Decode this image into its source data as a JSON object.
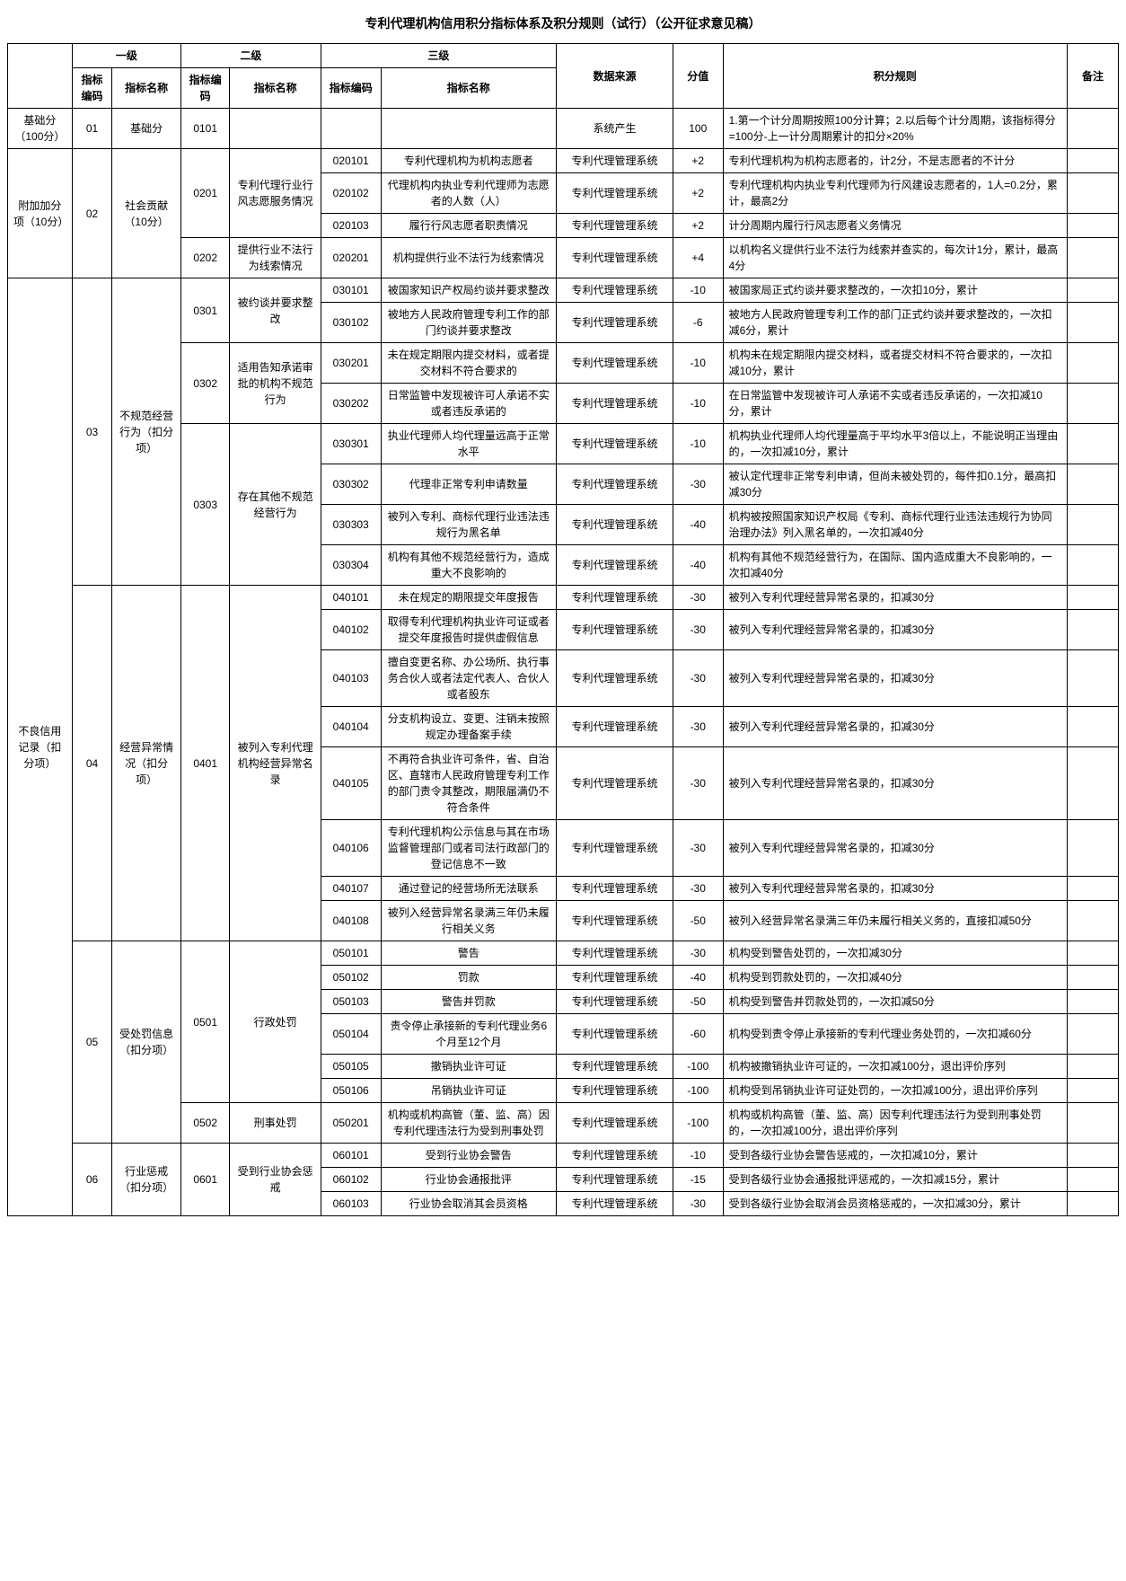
{
  "title": "专利代理机构信用积分指标体系及积分规则（试行）（公开征求意见稿）",
  "header_groups": {
    "l1": "一级",
    "l2": "二级",
    "l3": "三级"
  },
  "headers": {
    "code": "指标编码",
    "name": "指标名称",
    "source": "数据来源",
    "score": "分值",
    "rule": "积分规则",
    "remark": "备注"
  },
  "colA": {
    "base": "基础分（100分）",
    "add": "附加加分项（10分）",
    "bad": "不良信用记录（扣分项）"
  },
  "rows": {
    "r01": {
      "l1c": "01",
      "l1n": "基础分",
      "l2c": "0101",
      "l2n": "",
      "l3c": "",
      "l3n": "",
      "src": "系统产生",
      "score": "100",
      "rule": "1.第一个计分周期按照100分计算；2.以后每个计分周期，该指标得分=100分-上一计分周期累计的扣分×20%"
    },
    "r0201": {
      "l1c": "02",
      "l1n": "社会贡献（10分）",
      "l2c": "0201",
      "l2n": "专利代理行业行风志愿服务情况",
      "l3c": "020101",
      "l3n": "专利代理机构为机构志愿者",
      "src": "专利代理管理系统",
      "score": "+2",
      "rule": "专利代理机构为机构志愿者的，计2分，不是志愿者的不计分"
    },
    "r020102": {
      "l3c": "020102",
      "l3n": "代理机构内执业专利代理师为志愿者的人数（人）",
      "src": "专利代理管理系统",
      "score": "+2",
      "rule": "专利代理机构内执业专利代理师为行风建设志愿者的，1人=0.2分，累计，最高2分"
    },
    "r020103": {
      "l3c": "020103",
      "l3n": "履行行风志愿者职责情况",
      "src": "专利代理管理系统",
      "score": "+2",
      "rule": "计分周期内履行行风志愿者义务情况"
    },
    "r0202": {
      "l2c": "0202",
      "l2n": "提供行业不法行为线索情况",
      "l3c": "020201",
      "l3n": "机构提供行业不法行为线索情况",
      "src": "专利代理管理系统",
      "score": "+4",
      "rule": "以机构名义提供行业不法行为线索并查实的，每次计1分，累计，最高4分"
    },
    "r030101": {
      "l1c": "03",
      "l1n": "不规范经营行为（扣分项）",
      "l2c": "0301",
      "l2n": "被约谈并要求整改",
      "l3c": "030101",
      "l3n": "被国家知识产权局约谈并要求整改",
      "src": "专利代理管理系统",
      "score": "-10",
      "rule": "被国家局正式约谈并要求整改的，一次扣10分，累计"
    },
    "r030102": {
      "l3c": "030102",
      "l3n": "被地方人民政府管理专利工作的部门约谈并要求整改",
      "src": "专利代理管理系统",
      "score": "-6",
      "rule": "被地方人民政府管理专利工作的部门正式约谈并要求整改的，一次扣减6分，累计"
    },
    "r030201": {
      "l2c": "0302",
      "l2n": "适用告知承诺审批的机构不规范行为",
      "l3c": "030201",
      "l3n": "未在规定期限内提交材料，或者提交材料不符合要求的",
      "src": "专利代理管理系统",
      "score": "-10",
      "rule": "机构未在规定期限内提交材料，或者提交材料不符合要求的，一次扣减10分，累计"
    },
    "r030202": {
      "l3c": "030202",
      "l3n": "日常监管中发现被许可人承诺不实或者违反承诺的",
      "src": "专利代理管理系统",
      "score": "-10",
      "rule": "在日常监管中发现被许可人承诺不实或者违反承诺的，一次扣减10分，累计"
    },
    "r030301": {
      "l2c": "0303",
      "l2n": "存在其他不规范经营行为",
      "l3c": "030301",
      "l3n": "执业代理师人均代理量远高于正常水平",
      "src": "专利代理管理系统",
      "score": "-10",
      "rule": "机构执业代理师人均代理量高于平均水平3倍以上，不能说明正当理由的，一次扣减10分，累计"
    },
    "r030302": {
      "l3c": "030302",
      "l3n": "代理非正常专利申请数量",
      "src": "专利代理管理系统",
      "score": "-30",
      "rule": "被认定代理非正常专利申请，但尚未被处罚的，每件扣0.1分，最高扣减30分"
    },
    "r030303": {
      "l3c": "030303",
      "l3n": "被列入专利、商标代理行业违法违规行为黑名单",
      "src": "专利代理管理系统",
      "score": "-40",
      "rule": "机构被按照国家知识产权局《专利、商标代理行业违法违规行为协同治理办法》列入黑名单的，一次扣减40分"
    },
    "r030304": {
      "l3c": "030304",
      "l3n": "机构有其他不规范经营行为，造成重大不良影响的",
      "src": "专利代理管理系统",
      "score": "-40",
      "rule": "机构有其他不规范经营行为，在国际、国内造成重大不良影响的，一次扣减40分"
    },
    "r040101": {
      "l1c": "04",
      "l1n": "经营异常情况（扣分项）",
      "l2c": "0401",
      "l2n": "被列入专利代理机构经营异常名录",
      "l3c": "040101",
      "l3n": "未在规定的期限提交年度报告",
      "src": "专利代理管理系统",
      "score": "-30",
      "rule": "被列入专利代理经营异常名录的，扣减30分"
    },
    "r040102": {
      "l3c": "040102",
      "l3n": "取得专利代理机构执业许可证或者提交年度报告时提供虚假信息",
      "src": "专利代理管理系统",
      "score": "-30",
      "rule": "被列入专利代理经营异常名录的，扣减30分"
    },
    "r040103": {
      "l3c": "040103",
      "l3n": "擅自变更名称、办公场所、执行事务合伙人或者法定代表人、合伙人或者股东",
      "src": "专利代理管理系统",
      "score": "-30",
      "rule": "被列入专利代理经营异常名录的，扣减30分"
    },
    "r040104": {
      "l3c": "040104",
      "l3n": "分支机构设立、变更、注销未按照规定办理备案手续",
      "src": "专利代理管理系统",
      "score": "-30",
      "rule": "被列入专利代理经营异常名录的，扣减30分"
    },
    "r040105": {
      "l3c": "040105",
      "l3n": "不再符合执业许可条件，省、自治区、直辖市人民政府管理专利工作的部门责令其整改，期限届满仍不符合条件",
      "src": "专利代理管理系统",
      "score": "-30",
      "rule": "被列入专利代理经营异常名录的，扣减30分"
    },
    "r040106": {
      "l3c": "040106",
      "l3n": "专利代理机构公示信息与其在市场监督管理部门或者司法行政部门的登记信息不一致",
      "src": "专利代理管理系统",
      "score": "-30",
      "rule": "被列入专利代理经营异常名录的，扣减30分"
    },
    "r040107": {
      "l3c": "040107",
      "l3n": "通过登记的经营场所无法联系",
      "src": "专利代理管理系统",
      "score": "-30",
      "rule": "被列入专利代理经营异常名录的，扣减30分"
    },
    "r040108": {
      "l3c": "040108",
      "l3n": "被列入经营异常名录满三年仍未履行相关义务",
      "src": "专利代理管理系统",
      "score": "-50",
      "rule": "被列入经营异常名录满三年仍未履行相关义务的，直接扣减50分"
    },
    "r050101": {
      "l1c": "05",
      "l1n": "受处罚信息（扣分项）",
      "l2c": "0501",
      "l2n": "行政处罚",
      "l3c": "050101",
      "l3n": "警告",
      "src": "专利代理管理系统",
      "score": "-30",
      "rule": "机构受到警告处罚的，一次扣减30分"
    },
    "r050102": {
      "l3c": "050102",
      "l3n": "罚款",
      "src": "专利代理管理系统",
      "score": "-40",
      "rule": "机构受到罚款处罚的，一次扣减40分"
    },
    "r050103": {
      "l3c": "050103",
      "l3n": "警告并罚款",
      "src": "专利代理管理系统",
      "score": "-50",
      "rule": "机构受到警告并罚款处罚的，一次扣减50分"
    },
    "r050104": {
      "l3c": "050104",
      "l3n": "责令停止承接新的专利代理业务6个月至12个月",
      "src": "专利代理管理系统",
      "score": "-60",
      "rule": "机构受到责令停止承接新的专利代理业务处罚的，一次扣减60分"
    },
    "r050105": {
      "l3c": "050105",
      "l3n": "撤销执业许可证",
      "src": "专利代理管理系统",
      "score": "-100",
      "rule": "机构被撤销执业许可证的，一次扣减100分，退出评价序列"
    },
    "r050106": {
      "l3c": "050106",
      "l3n": "吊销执业许可证",
      "src": "专利代理管理系统",
      "score": "-100",
      "rule": "机构受到吊销执业许可证处罚的，一次扣减100分，退出评价序列"
    },
    "r050201": {
      "l2c": "0502",
      "l2n": "刑事处罚",
      "l3c": "050201",
      "l3n": "机构或机构高管（董、监、高）因专利代理违法行为受到刑事处罚",
      "src": "专利代理管理系统",
      "score": "-100",
      "rule": "机构或机构高管（董、监、高）因专利代理违法行为受到刑事处罚的，一次扣减100分，退出评价序列"
    },
    "r060101": {
      "l1c": "06",
      "l1n": "行业惩戒（扣分项）",
      "l2c": "0601",
      "l2n": "受到行业协会惩戒",
      "l3c": "060101",
      "l3n": "受到行业协会警告",
      "src": "专利代理管理系统",
      "score": "-10",
      "rule": "受到各级行业协会警告惩戒的，一次扣减10分，累计"
    },
    "r060102": {
      "l3c": "060102",
      "l3n": "行业协会通报批评",
      "src": "专利代理管理系统",
      "score": "-15",
      "rule": "受到各级行业协会通报批评惩戒的，一次扣减15分，累计"
    },
    "r060103": {
      "l3c": "060103",
      "l3n": "行业协会取消其会员资格",
      "src": "专利代理管理系统",
      "score": "-30",
      "rule": "受到各级行业协会取消会员资格惩戒的，一次扣减30分，累计"
    }
  }
}
